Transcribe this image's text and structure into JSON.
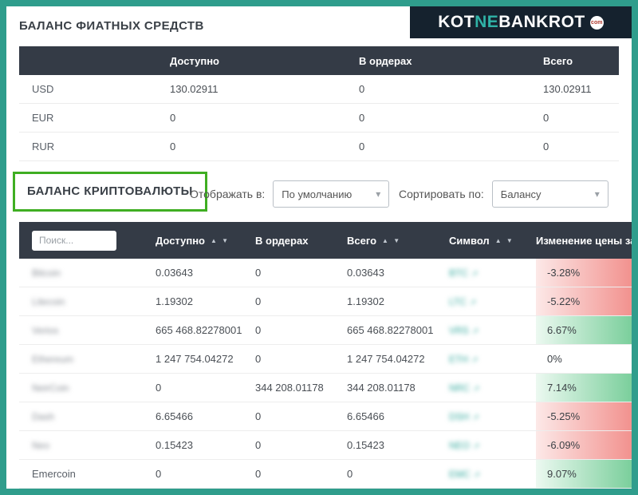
{
  "colors": {
    "frame_teal": "#2f9d8c",
    "header_dark": "#343b46",
    "logo_bg": "#15222e",
    "logo_teal": "#2fb3a7",
    "annotation_green": "#3fae22",
    "negative_red": "#e7453c",
    "positive_green": "#23af5a",
    "link_teal": "#2fa79b"
  },
  "logo": {
    "part1": "KOT",
    "part2": "NE",
    "part3": "BANKROT",
    "badge": "com"
  },
  "fiat": {
    "title": "БАЛАНС ФИАТНЫХ СРЕДСТВ",
    "headers": {
      "available": "Доступно",
      "in_orders": "В ордерах",
      "total": "Всего"
    },
    "rows": [
      {
        "currency": "USD",
        "available": "130.02911",
        "in_orders": "0",
        "total": "130.02911"
      },
      {
        "currency": "EUR",
        "available": "0",
        "in_orders": "0",
        "total": "0"
      },
      {
        "currency": "RUR",
        "available": "0",
        "in_orders": "0",
        "total": "0"
      }
    ]
  },
  "controls": {
    "crypto_title": "БАЛАНС КРИПТОВАЛЮТЫ",
    "display_label": "Отображать в:",
    "display_value": "По умолчанию",
    "sort_label": "Сортировать по:",
    "sort_value": "Балансу",
    "chevron": "▾"
  },
  "crypto": {
    "search_placeholder": "Поиск...",
    "sort_glyphs": "▲ ▼",
    "symbol_icon": "↗",
    "headers": {
      "available": "Доступно",
      "in_orders": "В ордерах",
      "total": "Всего",
      "symbol": "Символ",
      "change": "Изменение цены за"
    },
    "rows": [
      {
        "name": "Bitcoin",
        "available": "0.03643",
        "in_orders": "0",
        "total": "0.03643",
        "symbol": "BTC",
        "change": "-3.28%",
        "trend": "down"
      },
      {
        "name": "Litecoin",
        "available": "1.19302",
        "in_orders": "0",
        "total": "1.19302",
        "symbol": "LTC",
        "change": "-5.22%",
        "trend": "down"
      },
      {
        "name": "Verios",
        "available": "665 468.82278001",
        "in_orders": "0",
        "total": "665 468.82278001",
        "symbol": "VRS",
        "change": "6.67%",
        "trend": "up"
      },
      {
        "name": "Ethereum",
        "available": "1 247 754.04272",
        "in_orders": "0",
        "total": "1 247 754.04272",
        "symbol": "ETH",
        "change": "0%",
        "trend": "flat"
      },
      {
        "name": "NeirCoin",
        "available": "0",
        "in_orders": "344 208.01178",
        "total": "344 208.01178",
        "symbol": "NRC",
        "change": "7.14%",
        "trend": "up"
      },
      {
        "name": "Dash",
        "available": "6.65466",
        "in_orders": "0",
        "total": "6.65466",
        "symbol": "DSH",
        "change": "-5.25%",
        "trend": "down"
      },
      {
        "name": "Neo",
        "available": "0.15423",
        "in_orders": "0",
        "total": "0.15423",
        "symbol": "NEO",
        "change": "-6.09%",
        "trend": "down"
      },
      {
        "name": "Emercoin",
        "available": "0",
        "in_orders": "0",
        "total": "0",
        "symbol": "EMC",
        "change": "9.07%",
        "trend": "up"
      }
    ]
  }
}
